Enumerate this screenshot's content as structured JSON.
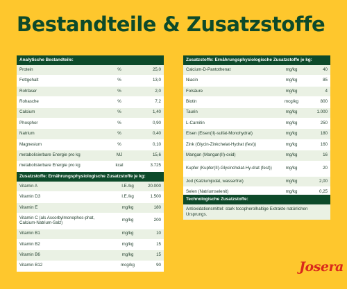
{
  "title": "Bestandteile & Zusatzstoffe",
  "logo_text": "Josera",
  "analytical": {
    "header": "Analytische Bestandteile:",
    "rows": [
      {
        "name": "Protein",
        "unit": "%",
        "value": "25,0"
      },
      {
        "name": "Fettgehalt",
        "unit": "%",
        "value": "13,0"
      },
      {
        "name": "Rohfaser",
        "unit": "%",
        "value": "2,0"
      },
      {
        "name": "Rohasche",
        "unit": "%",
        "value": "7,2"
      },
      {
        "name": "Calcium",
        "unit": "%",
        "value": "1,40"
      },
      {
        "name": "Phosphor",
        "unit": "%",
        "value": "0,90"
      },
      {
        "name": "Natrium",
        "unit": "%",
        "value": "0,40"
      },
      {
        "name": "Magnesium",
        "unit": "%",
        "value": "0,10"
      },
      {
        "name": "metabolisierbare Energie pro kg",
        "unit": "MJ",
        "value": "15,6"
      },
      {
        "name": "metabolisierbare Energie pro kg",
        "unit": "kcal",
        "value": "3.725"
      }
    ]
  },
  "additives_left": {
    "header": "Zusatzstoffe: Ernährungsphysiologische Zusatzstoffe je kg:",
    "rows": [
      {
        "name": "Vitamin A",
        "unit": "I.E./kg",
        "value": "20.000"
      },
      {
        "name": "Vitamin D3",
        "unit": "I.E./kg",
        "value": "1.500"
      },
      {
        "name": "Vitamin E",
        "unit": "mg/kg",
        "value": "180"
      },
      {
        "name": "Vitamin C (als Ascorbylmonophos-phat, Calcium-Natrium-Salz)",
        "unit": "mg/kg",
        "value": "200"
      },
      {
        "name": "Vitamin B1",
        "unit": "mg/kg",
        "value": "10"
      },
      {
        "name": "Vitamin B2",
        "unit": "mg/kg",
        "value": "15"
      },
      {
        "name": "Vitamin B6",
        "unit": "mg/kg",
        "value": "15"
      },
      {
        "name": "Vitamin B12",
        "unit": "mcg/kg",
        "value": "90"
      }
    ]
  },
  "additives_right": {
    "header": "Zusatzstoffe: Ernährungsphysiologische Zusatzstoffe je kg:",
    "rows": [
      {
        "name": "Calcium-D-Pantothenat",
        "unit": "mg/kg",
        "value": "40"
      },
      {
        "name": "Niacin",
        "unit": "mg/kg",
        "value": "85"
      },
      {
        "name": "Folsäure",
        "unit": "mg/kg",
        "value": "4"
      },
      {
        "name": "Biotin",
        "unit": "mcg/kg",
        "value": "800"
      },
      {
        "name": "Taurin",
        "unit": "mg/kg",
        "value": "1.000"
      },
      {
        "name": "L-Carnitin",
        "unit": "mg/kg",
        "value": "250"
      },
      {
        "name": "Eisen (Eisen(II)-sulfat-Monohydrat)",
        "unit": "mg/kg",
        "value": "180"
      },
      {
        "name": "Zink (Glycin-Zinkchelat-Hydrat (fest))",
        "unit": "mg/kg",
        "value": "160"
      },
      {
        "name": "Mangan (Mangan(II)-oxid)",
        "unit": "mg/kg",
        "value": "16"
      },
      {
        "name": "Kupfer (Kupfer(II)-Glycinchelat-Hy-drat (fest))",
        "unit": "mg/kg",
        "value": "20"
      },
      {
        "name": "Jod (Kalziumjodat, wasserfrei)",
        "unit": "mg/kg",
        "value": "2,00"
      },
      {
        "name": "Selen (Natriumselenit)",
        "unit": "mg/kg",
        "value": "0,25"
      }
    ]
  },
  "technological": {
    "header": "Technologische Zusatzstoffe:",
    "text": "Antioxidationsmittel: stark tocopherolhaltige Extrakte natürlichen Ursprungs."
  }
}
